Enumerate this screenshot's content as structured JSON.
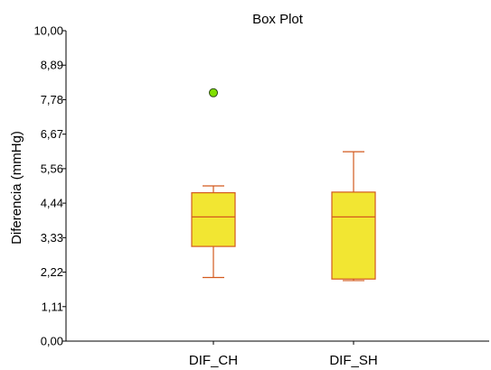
{
  "chart_data": {
    "type": "box",
    "title": "Box Plot",
    "ylabel": "Diferencia (mmHg)",
    "xlabel": "",
    "ylim": [
      0,
      10
    ],
    "yticks": [
      "0,00",
      "1,11",
      "2,22",
      "3,33",
      "4,44",
      "5,56",
      "6,67",
      "7,78",
      "8,89",
      "10,00"
    ],
    "categories": [
      "DIF_CH",
      "DIF_SH"
    ],
    "boxes": [
      {
        "name": "DIF_CH",
        "whisker_low": 2.05,
        "q1": 3.05,
        "median": 4.0,
        "q3": 4.78,
        "whisker_high": 5.0,
        "outliers": [
          8.0
        ]
      },
      {
        "name": "DIF_SH",
        "whisker_low": 1.95,
        "q1": 2.0,
        "median": 4.0,
        "q3": 4.8,
        "whisker_high": 6.1,
        "outliers": []
      }
    ],
    "grid": false,
    "legend": "none"
  },
  "colors": {
    "box_fill": "#f2e632",
    "box_stroke": "#d35a1e",
    "outlier_fill": "#80e000",
    "outlier_stroke": "#2a4a10"
  }
}
